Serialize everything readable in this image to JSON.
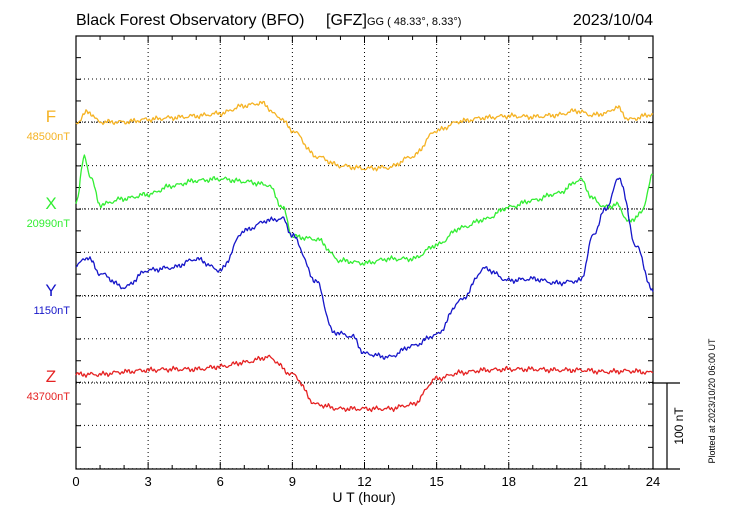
{
  "chart_data": {
    "type": "line",
    "title": "Black Forest Observatory (BFO)",
    "source": "[GFZ]",
    "coords": "GG ( 48.33°,   8.33°)",
    "date": "2023/10/04",
    "xlabel": "U T (hour)",
    "xlim": [
      0,
      24
    ],
    "xticks": [
      "0",
      "3",
      "6",
      "9",
      "12",
      "15",
      "18",
      "21",
      "24"
    ],
    "scale_label": "100 nT",
    "plotted_note": "Plotted at 2023/10/20 06:00 UT",
    "grid": true,
    "series": [
      {
        "name": "F",
        "baseline": "48500nT",
        "color": "#f5b324",
        "x": [
          0,
          0.5,
          1,
          2,
          3,
          4,
          5,
          6,
          7,
          7.7,
          8.5,
          9,
          10,
          11,
          12,
          13,
          14,
          15,
          16,
          17,
          18,
          19,
          20,
          20.8,
          21.5,
          22,
          22.5,
          23,
          24
        ],
        "values": [
          -1,
          12,
          0,
          0,
          3,
          5,
          7,
          10,
          19,
          22,
          5,
          -10,
          -40,
          -51,
          -54,
          -53,
          -40,
          -10,
          1,
          5,
          7,
          6,
          8,
          13,
          8,
          10,
          17,
          3,
          9
        ]
      },
      {
        "name": "X",
        "baseline": "20990nT",
        "color": "#33ee33",
        "x": [
          0,
          0.35,
          0.6,
          1,
          2,
          3,
          4,
          5,
          6,
          7,
          8,
          8.6,
          9,
          10,
          11,
          12,
          13,
          14,
          15,
          16,
          17,
          18,
          19,
          20,
          21,
          21.5,
          22,
          22.5,
          23,
          23.5,
          24
        ],
        "values": [
          8,
          60,
          38,
          5,
          12,
          17,
          27,
          33,
          35,
          32,
          28,
          2,
          -32,
          -35,
          -60,
          -63,
          -58,
          -58,
          -42,
          -22,
          -12,
          2,
          10,
          18,
          34,
          12,
          2,
          5,
          -15,
          -5,
          40
        ]
      },
      {
        "name": "Y",
        "baseline": "1150nT",
        "color": "#1616c9",
        "x": [
          0,
          0.5,
          1,
          2,
          3,
          4,
          5,
          6,
          7,
          8,
          8.6,
          9,
          10,
          10.7,
          11.5,
          12,
          13,
          14,
          15,
          16,
          17,
          18,
          19,
          20,
          21,
          21.5,
          22,
          22.6,
          23.3,
          24
        ],
        "values": [
          36,
          45,
          26,
          10,
          30,
          33,
          43,
          30,
          76,
          88,
          90,
          70,
          17,
          -42,
          -47,
          -67,
          -71,
          -58,
          -45,
          -5,
          32,
          18,
          20,
          15,
          18,
          70,
          100,
          137,
          58,
          5
        ]
      },
      {
        "name": "Z",
        "baseline": "43700nT",
        "color": "#e52222",
        "x": [
          0,
          1,
          2,
          3,
          4,
          5,
          6,
          7,
          8,
          9,
          10,
          11,
          12,
          13,
          14,
          15,
          16,
          17,
          18,
          19,
          20,
          21,
          22,
          23,
          24
        ],
        "values": [
          10,
          10,
          13,
          15,
          16,
          16,
          19,
          24,
          30,
          10,
          -25,
          -30,
          -30,
          -30,
          -25,
          5,
          12,
          15,
          16,
          16,
          15,
          15,
          13,
          14,
          12
        ]
      }
    ]
  }
}
